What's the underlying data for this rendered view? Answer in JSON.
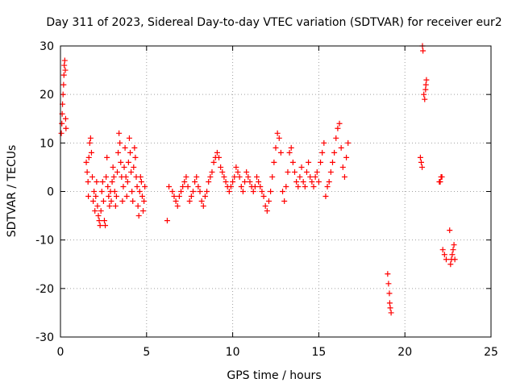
{
  "chart_data": {
    "type": "scatter",
    "title": "Day 311 of 2023, Sidereal Day-to-day VTEC variation (SDTVAR) for receiver eur2",
    "xlabel": "GPS time / hours",
    "ylabel": "SDTVAR / TECUs",
    "xlim": [
      0,
      25
    ],
    "ylim": [
      -30,
      30
    ],
    "xticks": [
      0,
      5,
      10,
      15,
      20,
      25
    ],
    "yticks": [
      -30,
      -20,
      -10,
      0,
      10,
      20,
      30
    ],
    "grid": true,
    "marker": "+",
    "color": "#ff0000",
    "series": [
      {
        "name": "SDTVAR",
        "x": [
          0.05,
          0.08,
          0.1,
          0.12,
          0.15,
          0.18,
          0.2,
          0.22,
          0.25,
          0.28,
          0.3,
          0.32,
          1.5,
          1.55,
          1.6,
          1.62,
          1.65,
          1.7,
          1.75,
          1.8,
          1.85,
          1.9,
          1.95,
          2.0,
          2.05,
          2.1,
          2.15,
          2.2,
          2.25,
          2.3,
          2.35,
          2.4,
          2.45,
          2.5,
          2.55,
          2.6,
          2.65,
          2.7,
          2.75,
          2.8,
          2.85,
          2.9,
          2.95,
          3.0,
          3.05,
          3.1,
          3.15,
          3.2,
          3.25,
          3.3,
          3.35,
          3.4,
          3.45,
          3.5,
          3.55,
          3.6,
          3.65,
          3.7,
          3.75,
          3.8,
          3.85,
          3.9,
          3.95,
          4.0,
          4.05,
          4.1,
          4.15,
          4.2,
          4.25,
          4.3,
          4.35,
          4.4,
          4.45,
          4.5,
          4.55,
          4.6,
          4.65,
          4.7,
          4.75,
          4.8,
          4.85,
          4.9,
          6.2,
          6.3,
          6.5,
          6.6,
          6.7,
          6.8,
          6.9,
          7.0,
          7.1,
          7.2,
          7.3,
          7.4,
          7.5,
          7.6,
          7.7,
          7.8,
          7.9,
          8.0,
          8.1,
          8.2,
          8.3,
          8.4,
          8.5,
          8.6,
          8.7,
          8.8,
          8.9,
          9.0,
          9.1,
          9.2,
          9.3,
          9.4,
          9.5,
          9.6,
          9.7,
          9.8,
          9.9,
          10.0,
          10.1,
          10.2,
          10.3,
          10.4,
          10.5,
          10.6,
          10.7,
          10.8,
          10.9,
          11.0,
          11.1,
          11.2,
          11.3,
          11.4,
          11.5,
          11.6,
          11.7,
          11.8,
          11.9,
          12.0,
          12.1,
          12.2,
          12.3,
          12.4,
          12.5,
          12.6,
          12.7,
          12.8,
          12.9,
          13.0,
          13.1,
          13.2,
          13.3,
          13.4,
          13.5,
          13.6,
          13.7,
          13.8,
          13.9,
          14.0,
          14.1,
          14.2,
          14.3,
          14.4,
          14.5,
          14.6,
          14.7,
          14.8,
          14.9,
          15.0,
          15.1,
          15.2,
          15.3,
          15.4,
          15.5,
          15.6,
          15.7,
          15.8,
          15.9,
          16.0,
          16.1,
          16.2,
          16.3,
          16.4,
          16.5,
          16.6,
          16.7,
          19.0,
          19.05,
          19.1,
          19.12,
          19.15,
          19.2,
          20.9,
          20.95,
          21.0,
          21.02,
          21.05,
          21.1,
          21.15,
          21.2,
          21.22,
          21.25,
          22.0,
          22.05,
          22.1,
          22.15,
          22.2,
          22.3,
          22.4,
          22.6,
          22.65,
          22.7,
          22.75,
          22.8,
          22.85,
          22.9
        ],
        "y": [
          12,
          14,
          16,
          18,
          20,
          22,
          24,
          26,
          27,
          25,
          15,
          13,
          6,
          4,
          2,
          -1,
          7,
          10,
          11,
          8,
          3,
          -2,
          0,
          -4,
          -1,
          2,
          -3,
          -5,
          -6,
          -7,
          -4,
          0,
          2,
          -2,
          -6,
          -7,
          3,
          7,
          1,
          -1,
          -3,
          0,
          -2,
          2,
          5,
          3,
          0,
          -3,
          -1,
          4,
          8,
          12,
          10,
          6,
          3,
          -2,
          1,
          5,
          9,
          3,
          -1,
          2,
          6,
          11,
          8,
          4,
          0,
          -2,
          5,
          9,
          7,
          3,
          1,
          -3,
          -5,
          0,
          3,
          2,
          -1,
          -4,
          -2,
          1,
          -6,
          1,
          0,
          -1,
          -2,
          -3,
          -1,
          0,
          1,
          2,
          3,
          1,
          -2,
          -1,
          0,
          2,
          3,
          1,
          0,
          -2,
          -3,
          -1,
          0,
          2,
          3,
          4,
          6,
          7,
          8,
          7,
          5,
          4,
          3,
          2,
          1,
          0,
          1,
          2,
          3,
          5,
          4,
          3,
          1,
          0,
          2,
          4,
          3,
          2,
          1,
          0,
          1,
          3,
          2,
          1,
          0,
          -1,
          -3,
          -4,
          -2,
          0,
          3,
          6,
          9,
          12,
          11,
          8,
          0,
          -2,
          1,
          4,
          8,
          9,
          6,
          4,
          2,
          1,
          3,
          5,
          2,
          1,
          4,
          6,
          3,
          2,
          1,
          3,
          4,
          2,
          6,
          8,
          10,
          -1,
          1,
          2,
          4,
          6,
          8,
          11,
          13,
          14,
          9,
          5,
          3,
          7,
          10,
          -17,
          -19,
          -21,
          -23,
          -24,
          -25,
          7,
          6,
          5,
          30,
          29,
          20,
          19,
          21,
          22,
          23,
          2,
          2,
          3,
          3,
          -12,
          -13,
          -14,
          -8,
          -15,
          -14,
          -13,
          -12,
          -11,
          -14
        ]
      }
    ]
  }
}
